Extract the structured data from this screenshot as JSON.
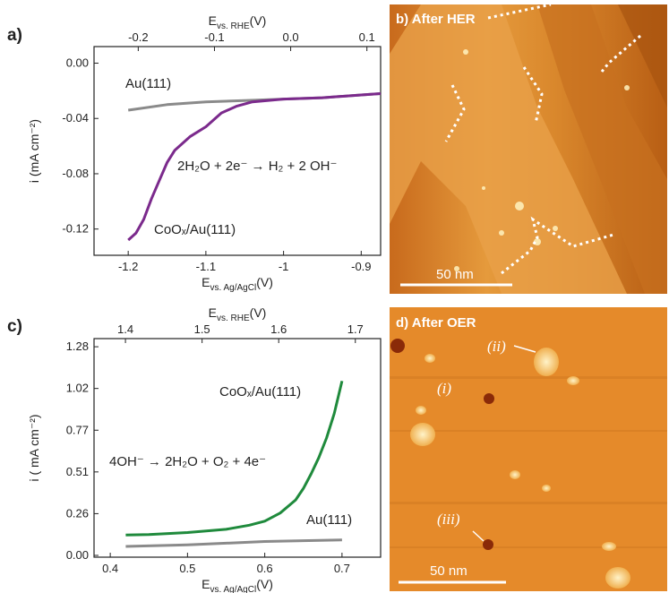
{
  "chart_data": [
    {
      "type": "line",
      "panel": "a)",
      "xlabel": {
        "symbol": "E",
        "subscript": "vs. Ag/AgCl",
        "unit": "(V)"
      },
      "x2label": {
        "symbol": "E",
        "subscript": "vs. RHE",
        "unit": "(V)"
      },
      "ylabel": "i  (mA cm⁻²)",
      "xlim": [
        -1.244,
        -0.875
      ],
      "xticks": [
        -1.2,
        -1.1,
        -1.0,
        -0.9
      ],
      "x2lim": [
        -0.258,
        0.118
      ],
      "x2ticks": [
        -0.2,
        -0.1,
        {
          "value": 0,
          "label": "0.0"
        },
        0.1
      ],
      "ylim": [
        -0.139,
        0.012
      ],
      "yticks": [
        {
          "value": 0,
          "label": "0.00"
        },
        -0.04,
        -0.08,
        -0.12
      ],
      "annotation": "2H₂O + 2e⁻ → H₂ + 2 OH⁻",
      "series": [
        {
          "name": "Au(111)",
          "color": "#8a8a8a",
          "x": [
            -1.2,
            -1.15,
            -1.1,
            -1.05,
            -1.0,
            -0.95,
            -0.9,
            -0.875
          ],
          "values": [
            -0.034,
            -0.03,
            -0.028,
            -0.027,
            -0.026,
            -0.025,
            -0.023,
            -0.022
          ]
        },
        {
          "name": "CoOₓ/Au(111)",
          "color": "#7b2a8c",
          "x": [
            -1.2,
            -1.19,
            -1.18,
            -1.17,
            -1.16,
            -1.15,
            -1.14,
            -1.12,
            -1.1,
            -1.08,
            -1.06,
            -1.04,
            -1.0,
            -0.95,
            -0.9,
            -0.875
          ],
          "values": [
            -0.128,
            -0.123,
            -0.113,
            -0.098,
            -0.085,
            -0.072,
            -0.063,
            -0.053,
            -0.046,
            -0.036,
            -0.031,
            -0.028,
            -0.026,
            -0.025,
            -0.023,
            -0.022
          ]
        }
      ]
    },
    {
      "type": "line",
      "panel": "c)",
      "xlabel": {
        "symbol": "E",
        "subscript": "vs. Ag/AgCl",
        "unit": "(V)"
      },
      "x2label": {
        "symbol": "E",
        "subscript": "vs. RHE",
        "unit": "(V)"
      },
      "ylabel": "i ( mA cm⁻²)",
      "xlim": [
        0.379,
        0.75
      ],
      "xticks": [
        0.4,
        0.5,
        0.6,
        0.7
      ],
      "x2lim": [
        1.359,
        1.733
      ],
      "x2ticks": [
        1.4,
        1.5,
        1.6,
        1.7
      ],
      "ylim": [
        -0.011,
        1.33
      ],
      "yticks": [
        {
          "value": 0,
          "label": "0.00"
        },
        {
          "value": 0.256,
          "label": "0.26"
        },
        {
          "value": 0.512,
          "label": "0.51"
        },
        {
          "value": 0.768,
          "label": "0.77"
        },
        {
          "value": 1.024,
          "label": "1.02"
        },
        1.28
      ],
      "annotation": "4OH⁻ → 2H₂O + O₂ + 4e⁻",
      "series": [
        {
          "name": "CoOₓ/Au(111)",
          "color": "#1f8a3c",
          "x": [
            0.42,
            0.45,
            0.5,
            0.55,
            0.58,
            0.6,
            0.62,
            0.64,
            0.65,
            0.66,
            0.67,
            0.68,
            0.69,
            0.7
          ],
          "values": [
            0.125,
            0.128,
            0.14,
            0.16,
            0.185,
            0.21,
            0.26,
            0.34,
            0.41,
            0.5,
            0.6,
            0.72,
            0.87,
            1.07
          ]
        },
        {
          "name": "Au(111)",
          "color": "#8a8a8a",
          "x": [
            0.42,
            0.5,
            0.55,
            0.6,
            0.65,
            0.7
          ],
          "values": [
            0.055,
            0.065,
            0.075,
            0.085,
            0.09,
            0.095
          ]
        }
      ]
    }
  ],
  "images": [
    {
      "label": "b) After HER",
      "scale_bar": "50 nm"
    },
    {
      "label": "d) After OER",
      "scale_bar": "50 nm",
      "annotations": [
        "(i)",
        "(ii)",
        "(iii)"
      ]
    }
  ]
}
